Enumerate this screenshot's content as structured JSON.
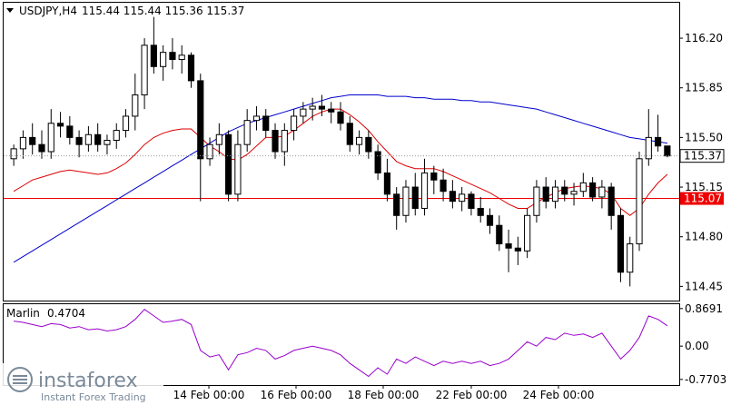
{
  "header": {
    "symbol": "USDJPY,H4",
    "ohlc": "115.44 115.44 115.36 115.37"
  },
  "indicator": {
    "name": "Marlin",
    "value": "0.4704"
  },
  "watermark": {
    "brand": "instaforex",
    "tagline": "Instant Forex Trading"
  },
  "colors": {
    "ma_fast": "#dd0000",
    "ma_slow": "#0000cc",
    "level_line": "#ee0000",
    "oscillator": "#9900cc",
    "candle": "#000000"
  },
  "chart_data": [
    {
      "type": "candlestick",
      "title": "USDJPY,H4",
      "price_ticks": [
        "116.20",
        "115.85",
        "115.50",
        "115.15",
        "114.80",
        "114.45"
      ],
      "x_ticks": [
        "14 Feb 00:00",
        "16 Feb 00:00",
        "18 Feb 00:00",
        "22 Feb 00:00",
        "24 Feb 00:00"
      ],
      "current_price_label": "115.37",
      "level_label": "115.07",
      "level": 115.07,
      "ylim": [
        114.35,
        116.45
      ],
      "candles": [
        [
          115.35,
          115.45,
          115.3,
          115.42
        ],
        [
          115.42,
          115.55,
          115.35,
          115.5
        ],
        [
          115.5,
          115.6,
          115.38,
          115.45
        ],
        [
          115.45,
          115.55,
          115.35,
          115.4
        ],
        [
          115.4,
          115.7,
          115.35,
          115.6
        ],
        [
          115.6,
          115.68,
          115.5,
          115.58
        ],
        [
          115.58,
          115.65,
          115.45,
          115.5
        ],
        [
          115.5,
          115.55,
          115.36,
          115.45
        ],
        [
          115.45,
          115.58,
          115.4,
          115.52
        ],
        [
          115.52,
          115.6,
          115.4,
          115.45
        ],
        [
          115.45,
          115.52,
          115.38,
          115.48
        ],
        [
          115.48,
          115.6,
          115.42,
          115.55
        ],
        [
          115.55,
          115.7,
          115.5,
          115.65
        ],
        [
          115.65,
          115.95,
          115.55,
          115.8
        ],
        [
          115.8,
          116.2,
          115.7,
          116.15
        ],
        [
          116.15,
          116.35,
          115.95,
          116.0
        ],
        [
          116.0,
          116.15,
          115.9,
          116.1
        ],
        [
          116.1,
          116.2,
          115.98,
          116.05
        ],
        [
          116.05,
          116.15,
          115.95,
          116.08
        ],
        [
          116.08,
          116.1,
          115.85,
          115.9
        ],
        [
          115.9,
          115.95,
          115.05,
          115.35
        ],
        [
          115.35,
          115.5,
          115.3,
          115.45
        ],
        [
          115.45,
          115.6,
          115.38,
          115.52
        ],
        [
          115.52,
          115.55,
          115.05,
          115.1
        ],
        [
          115.1,
          115.55,
          115.05,
          115.45
        ],
        [
          115.45,
          115.7,
          115.4,
          115.62
        ],
        [
          115.62,
          115.72,
          115.55,
          115.65
        ],
        [
          115.65,
          115.7,
          115.5,
          115.55
        ],
        [
          115.55,
          115.6,
          115.35,
          115.4
        ],
        [
          115.4,
          115.6,
          115.3,
          115.55
        ],
        [
          115.55,
          115.7,
          115.48,
          115.65
        ],
        [
          115.65,
          115.75,
          115.6,
          115.7
        ],
        [
          115.7,
          115.78,
          115.62,
          115.72
        ],
        [
          115.72,
          115.8,
          115.65,
          115.7
        ],
        [
          115.7,
          115.75,
          115.6,
          115.68
        ],
        [
          115.68,
          115.75,
          115.55,
          115.6
        ],
        [
          115.6,
          115.65,
          115.4,
          115.45
        ],
        [
          115.45,
          115.55,
          115.38,
          115.5
        ],
        [
          115.5,
          115.55,
          115.35,
          115.4
        ],
        [
          115.4,
          115.45,
          115.2,
          115.25
        ],
        [
          115.25,
          115.35,
          115.05,
          115.1
        ],
        [
          115.1,
          115.15,
          114.85,
          114.95
        ],
        [
          114.95,
          115.2,
          114.9,
          115.15
        ],
        [
          115.15,
          115.25,
          114.95,
          115.0
        ],
        [
          115.0,
          115.35,
          114.95,
          115.25
        ],
        [
          115.25,
          115.3,
          115.1,
          115.2
        ],
        [
          115.2,
          115.28,
          115.05,
          115.12
        ],
        [
          115.12,
          115.2,
          115.0,
          115.05
        ],
        [
          115.05,
          115.15,
          114.98,
          115.1
        ],
        [
          115.1,
          115.12,
          114.95,
          115.0
        ],
        [
          115.0,
          115.08,
          114.9,
          114.95
        ],
        [
          114.95,
          115.0,
          114.82,
          114.88
        ],
        [
          114.88,
          114.95,
          114.7,
          114.75
        ],
        [
          114.75,
          114.85,
          114.55,
          114.72
        ],
        [
          114.72,
          114.8,
          114.6,
          114.7
        ],
        [
          114.7,
          115.0,
          114.65,
          114.95
        ],
        [
          114.95,
          115.2,
          114.9,
          115.15
        ],
        [
          115.15,
          115.22,
          115.0,
          115.05
        ],
        [
          115.05,
          115.2,
          115.0,
          115.15
        ],
        [
          115.15,
          115.2,
          115.05,
          115.1
        ],
        [
          115.1,
          115.18,
          115.02,
          115.12
        ],
        [
          115.12,
          115.25,
          115.08,
          115.18
        ],
        [
          115.18,
          115.22,
          115.05,
          115.08
        ],
        [
          115.08,
          115.2,
          115.0,
          115.15
        ],
        [
          115.15,
          115.18,
          114.85,
          114.95
        ],
        [
          114.95,
          115.0,
          114.48,
          114.55
        ],
        [
          114.55,
          114.8,
          114.45,
          114.75
        ],
        [
          114.75,
          115.4,
          114.7,
          115.35
        ],
        [
          115.35,
          115.7,
          115.3,
          115.5
        ],
        [
          115.5,
          115.66,
          115.4,
          115.44
        ],
        [
          115.44,
          115.44,
          115.36,
          115.37
        ]
      ],
      "ma_fast": [
        115.12,
        115.16,
        115.2,
        115.22,
        115.24,
        115.26,
        115.27,
        115.26,
        115.25,
        115.24,
        115.25,
        115.28,
        115.32,
        115.38,
        115.45,
        115.5,
        115.53,
        115.55,
        115.56,
        115.56,
        115.5,
        115.44,
        115.4,
        115.35,
        115.34,
        115.38,
        115.44,
        115.5,
        115.5,
        115.51,
        115.55,
        115.6,
        115.65,
        115.68,
        115.7,
        115.7,
        115.66,
        115.61,
        115.55,
        115.47,
        115.4,
        115.33,
        115.3,
        115.28,
        115.28,
        115.28,
        115.26,
        115.23,
        115.2,
        115.17,
        115.14,
        115.11,
        115.07,
        115.03,
        115.0,
        115.0,
        115.04,
        115.08,
        115.11,
        115.14,
        115.15,
        115.16,
        115.15,
        115.14,
        115.1,
        115.0,
        114.95,
        115.0,
        115.1,
        115.18,
        115.24
      ],
      "ma_slow": [
        114.62,
        114.66,
        114.7,
        114.74,
        114.78,
        114.82,
        114.86,
        114.9,
        114.94,
        114.98,
        115.02,
        115.06,
        115.1,
        115.14,
        115.18,
        115.22,
        115.26,
        115.3,
        115.34,
        115.38,
        115.42,
        115.46,
        115.5,
        115.54,
        115.57,
        115.6,
        115.62,
        115.64,
        115.66,
        115.68,
        115.7,
        115.72,
        115.74,
        115.76,
        115.78,
        115.79,
        115.8,
        115.8,
        115.8,
        115.8,
        115.79,
        115.79,
        115.79,
        115.78,
        115.78,
        115.77,
        115.77,
        115.77,
        115.76,
        115.76,
        115.75,
        115.75,
        115.74,
        115.73,
        115.72,
        115.71,
        115.7,
        115.68,
        115.66,
        115.64,
        115.62,
        115.6,
        115.58,
        115.56,
        115.54,
        115.52,
        115.5,
        115.49,
        115.48,
        115.47,
        115.46
      ]
    },
    {
      "type": "line",
      "title": "Marlin 0.4704",
      "y_ticks": [
        "0.8691",
        "0.00",
        "-0.7703"
      ],
      "ylim": [
        -0.9,
        0.97
      ],
      "values": [
        0.58,
        0.55,
        0.5,
        0.45,
        0.52,
        0.5,
        0.42,
        0.45,
        0.38,
        0.4,
        0.35,
        0.38,
        0.45,
        0.62,
        0.85,
        0.7,
        0.55,
        0.58,
        0.62,
        0.5,
        -0.1,
        -0.25,
        -0.2,
        -0.55,
        -0.2,
        -0.15,
        -0.05,
        -0.1,
        -0.3,
        -0.22,
        -0.1,
        -0.05,
        0.0,
        -0.05,
        -0.1,
        -0.2,
        -0.4,
        -0.55,
        -0.7,
        -0.5,
        -0.65,
        -0.3,
        -0.4,
        -0.25,
        -0.35,
        -0.45,
        -0.35,
        -0.4,
        -0.35,
        -0.4,
        -0.35,
        -0.45,
        -0.4,
        -0.3,
        -0.1,
        0.1,
        0.0,
        0.2,
        0.15,
        0.3,
        0.25,
        0.28,
        0.2,
        0.3,
        0.0,
        -0.3,
        -0.1,
        0.2,
        0.7,
        0.62,
        0.47
      ]
    }
  ]
}
